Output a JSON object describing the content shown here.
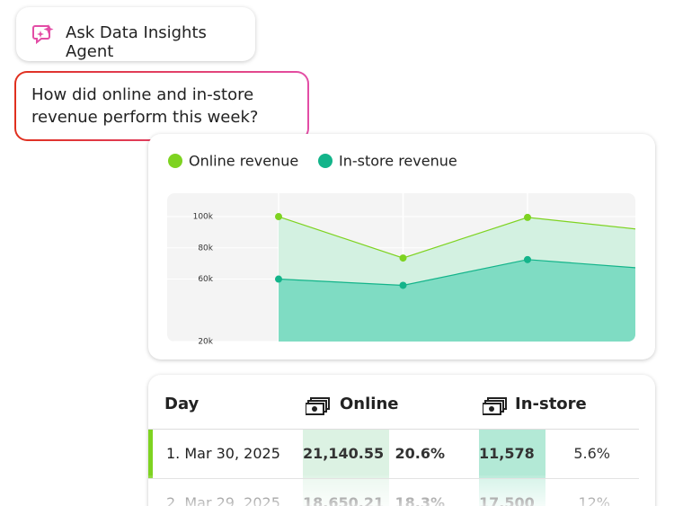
{
  "header": {
    "button": "Ask Data Insights Agent"
  },
  "prompt": {
    "text": "How did online and in-store revenue perform this week?"
  },
  "chart_data": {
    "type": "area",
    "categories": [
      null,
      null,
      null,
      null
    ],
    "series": [
      {
        "name": "Online revenue",
        "color": "#7ed321",
        "fill": "#d3f1e1",
        "values": [
          100000,
          73500,
          99500,
          91000
        ]
      },
      {
        "name": "In-store revenue",
        "color": "#13b48a",
        "fill": "#7fdcc3",
        "values": [
          60000,
          56000,
          72500,
          66500
        ]
      }
    ],
    "ylim": [
      20000,
      115000
    ],
    "yticks": [
      {
        "value": 100000,
        "label": "100k"
      },
      {
        "value": 80000,
        "label": "80k"
      },
      {
        "value": 60000,
        "label": "60k"
      },
      {
        "value": 20000,
        "label": "20k"
      }
    ],
    "grid": true
  },
  "table": {
    "columns": [
      "Day",
      "Online",
      "In-store"
    ],
    "rows": [
      [
        "1. Mar 30, 2025",
        "21,140.55",
        "20.6%",
        "11,578",
        "5.6%"
      ],
      [
        "2. Mar 29, 2025",
        "18,650.21",
        "18.3%",
        "17,500",
        "12%"
      ]
    ]
  }
}
